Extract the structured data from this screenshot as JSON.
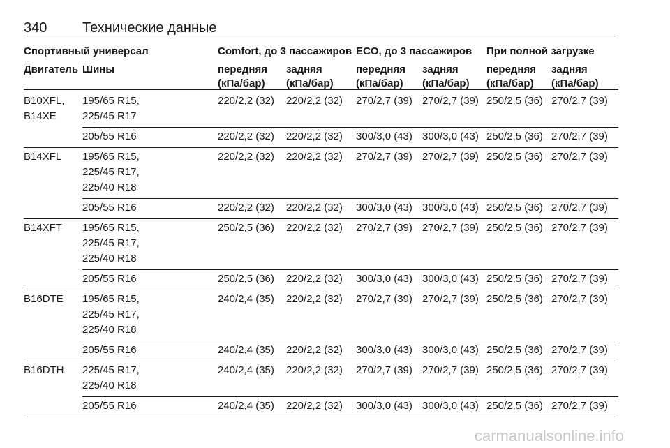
{
  "header": {
    "page_number": "340",
    "title": "Технические данные"
  },
  "table": {
    "columns": {
      "group_label": "Спортивный универсал",
      "engine": "Двигатель",
      "tires": "Шины",
      "groups": [
        {
          "title": "Comfort, до 3 пассажиров",
          "front": "передняя",
          "rear": "задняя",
          "unit_front": "(кПа/бар)",
          "unit_rear": "(кПа/бар)"
        },
        {
          "title": "ECO, до 3 пассажиров",
          "front": "передняя",
          "rear": "задняя",
          "unit_front": "(кПа/бар)",
          "unit_rear": "(кПа/бар)"
        },
        {
          "title": "При полной загрузке",
          "front": "передняя",
          "rear": "задняя",
          "unit_front": "(кПа/бар)",
          "unit_rear": "(кПа/бар)"
        }
      ]
    },
    "rows": [
      {
        "engine": [
          "B10XFL,",
          "B14XE"
        ],
        "variants": [
          {
            "tires": [
              "195/65 R15,",
              "225/45 R17"
            ],
            "pressures": [
              "220/2,2 (32)",
              "220/2,2 (32)",
              "270/2,7 (39)",
              "270/2,7 (39)",
              "250/2,5 (36)",
              "270/2,7 (39)"
            ]
          },
          {
            "tires": [
              "205/55 R16"
            ],
            "pressures": [
              "220/2,2 (32)",
              "220/2,2 (32)",
              "300/3,0 (43)",
              "300/3,0 (43)",
              "250/2,5 (36)",
              "270/2,7 (39)"
            ]
          }
        ]
      },
      {
        "engine": [
          "B14XFL"
        ],
        "variants": [
          {
            "tires": [
              "195/65 R15,",
              "225/45 R17,",
              "225/40 R18"
            ],
            "pressures": [
              "220/2,2 (32)",
              "220/2,2 (32)",
              "270/2,7 (39)",
              "270/2,7 (39)",
              "250/2,5 (36)",
              "270/2,7 (39)"
            ]
          },
          {
            "tires": [
              "205/55 R16"
            ],
            "pressures": [
              "220/2,2 (32)",
              "220/2,2 (32)",
              "300/3,0 (43)",
              "300/3,0 (43)",
              "250/2,5 (36)",
              "270/2,7 (39)"
            ]
          }
        ]
      },
      {
        "engine": [
          "B14XFT"
        ],
        "variants": [
          {
            "tires": [
              "195/65 R15,",
              "225/45 R17,",
              "225/40 R18"
            ],
            "pressures": [
              "250/2,5 (36)",
              "220/2,2 (32)",
              "270/2,7 (39)",
              "270/2,7 (39)",
              "250/2,5 (36)",
              "270/2,7 (39)"
            ]
          },
          {
            "tires": [
              "205/55 R16"
            ],
            "pressures": [
              "250/2,5 (36)",
              "220/2,2 (32)",
              "300/3,0 (43)",
              "300/3,0 (43)",
              "250/2,5 (36)",
              "270/2,7 (39)"
            ]
          }
        ]
      },
      {
        "engine": [
          "B16DTE"
        ],
        "variants": [
          {
            "tires": [
              "195/65 R15,",
              "225/45 R17,",
              "225/40 R18"
            ],
            "pressures": [
              "240/2,4 (35)",
              "220/2,2 (32)",
              "270/2,7 (39)",
              "270/2,7 (39)",
              "250/2,5 (36)",
              "270/2,7 (39)"
            ]
          },
          {
            "tires": [
              "205/55 R16"
            ],
            "pressures": [
              "240/2,4 (35)",
              "220/2,2 (32)",
              "300/3,0 (43)",
              "300/3,0 (43)",
              "250/2,5 (36)",
              "270/2,7 (39)"
            ]
          }
        ]
      },
      {
        "engine": [
          "B16DTH"
        ],
        "variants": [
          {
            "tires": [
              "225/45 R17,",
              "225/40 R18"
            ],
            "pressures": [
              "240/2,4 (35)",
              "220/2,2 (32)",
              "270/2,7 (39)",
              "270/2,7 (39)",
              "250/2,5 (36)",
              "270/2,7 (39)"
            ]
          },
          {
            "tires": [
              "205/55 R16"
            ],
            "pressures": [
              "240/2,4 (35)",
              "220/2,2 (32)",
              "300/3,0 (43)",
              "300/3,0 (43)",
              "250/2,5 (36)",
              "270/2,7 (39)"
            ]
          }
        ]
      }
    ]
  },
  "watermark": "carmanualsonline.info"
}
